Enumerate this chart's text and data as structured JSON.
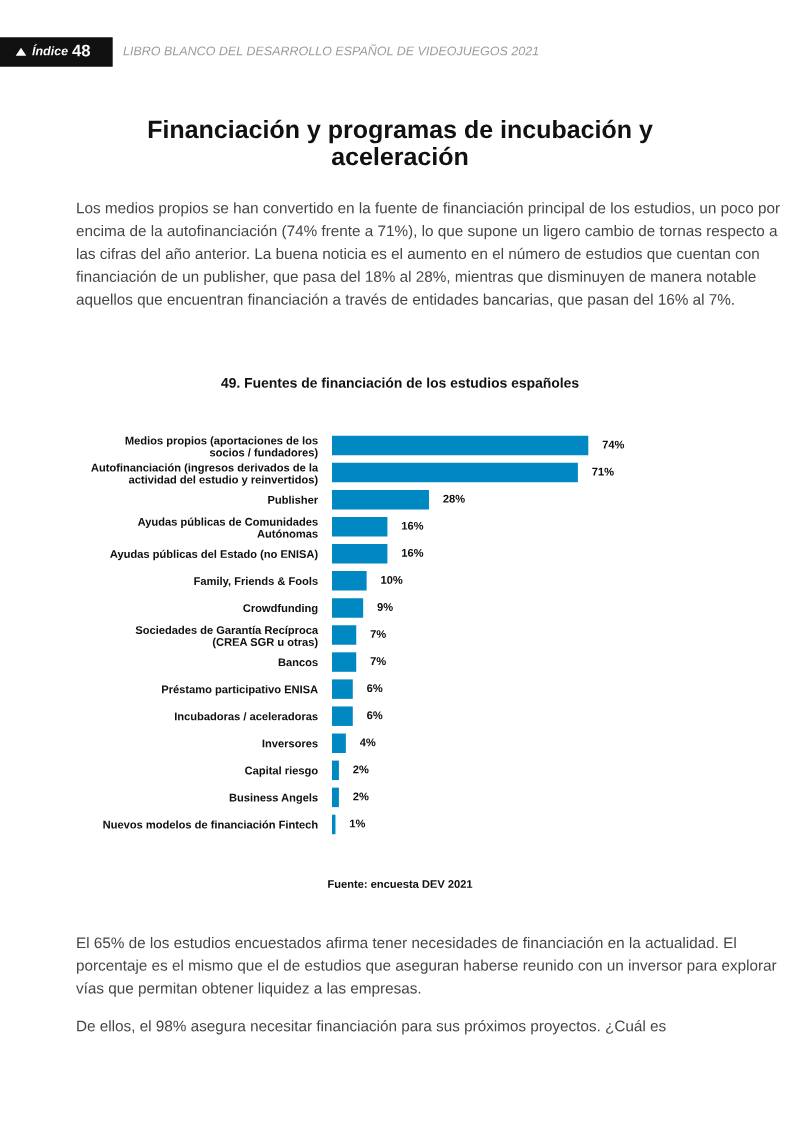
{
  "chart_data": {
    "type": "bar",
    "orientation": "horizontal",
    "title": "49. Fuentes de financiación de los estudios españoles",
    "categories": [
      "Medios propios (aportaciones de los\nsocios / fundadores)",
      "Autofinanciación (ingresos derivados de la\nactividad del estudio y reinvertidos)",
      "Publisher",
      "Ayudas públicas de Comunidades\nAutónomas",
      "Ayudas públicas del Estado (no ENISA)",
      "Family, Friends & Fools",
      "Crowdfunding",
      "Sociedades de Garantía Recíproca\n(CREA SGR u otras)",
      "Bancos",
      "Préstamo participativo ENISA",
      "Incubadoras / aceleradoras",
      "Inversores",
      "Capital riesgo",
      "Business Angels",
      "Nuevos modelos de financiación Fintech"
    ],
    "values": [
      74,
      71,
      28,
      16,
      16,
      10,
      9,
      7,
      7,
      6,
      6,
      4,
      2,
      2,
      1
    ],
    "value_labels": [
      "74%",
      "71%",
      "28%",
      "16%",
      "16%",
      "10%",
      "9%",
      "7%",
      "7%",
      "6%",
      "6%",
      "4%",
      "2%",
      "2%",
      "1%"
    ],
    "color": "#0088c2",
    "legend": false,
    "grid": false,
    "annotations": [
      "Índice",
      "48",
      "LIBRO BLANCO DEL DESARROLLO ESPAÑOL DE VIDEOJUEGOS 2021",
      "Financiación y programas de incubación y\naceleración",
      "Los medios propios se han convertido en la fuente de financiación principal de los estudios, un poco por encima de la autofinanciación (74% frente a 71%), lo que supone un ligero cambio de tornas respecto a las cifras del año anterior. La buena noticia es el aumento en el número de estudios que cuentan con financiación de un publisher, que pasa del 18% al 28%, mientras que disminuyen de manera notable aquellos que encuentran financiación a través de entidades bancarias, que pasan del 16% al 7%.",
      "Fuente: encuesta DEV 2021",
      "El 65% de los estudios encuestados afirma tener necesidades de financiación en la actualidad. El porcentaje es el mismo que el de estudios que aseguran haberse reunido con un inversor para explorar vías que permitan obtener liquidez a las empresas.",
      "De ellos, el 98% asegura necesitar financiación para sus próximos proyectos. ¿Cuál es"
    ]
  }
}
